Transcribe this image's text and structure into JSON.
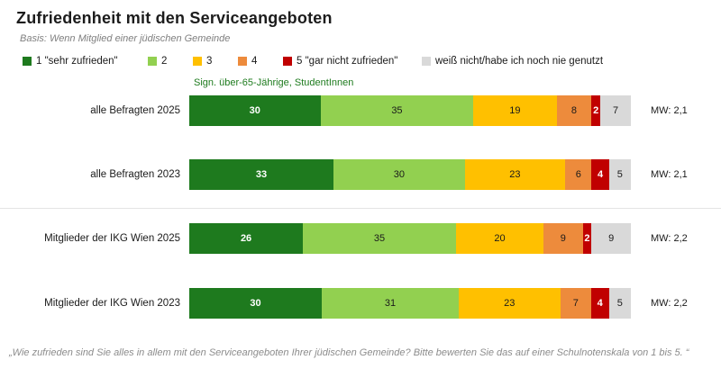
{
  "title": "Zufriedenheit mit den Serviceangeboten",
  "basis": "Basis: Wenn Mitglied einer jüdischen Gemeinde",
  "annotation": "Sign. über-65-Jährige, StudentInnen",
  "annotation_color": "#1e7b1e",
  "footnote": "„Wie zufrieden sind Sie alles in allem mit den Serviceangeboten Ihrer jüdischen Gemeinde? Bitte bewerten Sie das auf einer Schulnotenskala von 1 bis 5. “",
  "chart_data": {
    "type": "bar",
    "orientation": "horizontal-stacked",
    "value_unit": "percent",
    "xlim": [
      0,
      100
    ],
    "legend_position": "top",
    "categories": [
      "alle Befragten 2025",
      "alle Befragten 2023",
      "Mitglieder der IKG Wien 2025",
      "Mitglieder der IKG Wien 2023"
    ],
    "series": [
      {
        "name": "1 \"sehr zufrieden\"",
        "color": "#1E7A1E",
        "label_color": "#ffffff",
        "label_bold": true,
        "values": [
          30,
          33,
          26,
          30
        ]
      },
      {
        "name": "2",
        "color": "#92D050",
        "label_color": "#1a1a1a",
        "label_bold": false,
        "values": [
          35,
          30,
          35,
          31
        ]
      },
      {
        "name": "3",
        "color": "#FFC000",
        "label_color": "#1a1a1a",
        "label_bold": false,
        "values": [
          19,
          23,
          20,
          23
        ]
      },
      {
        "name": "4",
        "color": "#ED8B3C",
        "label_color": "#1a1a1a",
        "label_bold": false,
        "values": [
          8,
          6,
          9,
          7
        ]
      },
      {
        "name": "5 \"gar nicht zufrieden\"",
        "color": "#C00000",
        "label_color": "#ffffff",
        "label_bold": true,
        "values": [
          2,
          4,
          2,
          4
        ]
      },
      {
        "name": "weiß nicht/habe ich noch nie genutzt",
        "color": "#D9D9D9",
        "label_color": "#1a1a1a",
        "label_bold": false,
        "values": [
          7,
          5,
          9,
          5
        ]
      }
    ],
    "mean_labels": [
      "MW: 2,1",
      "MW: 2,1",
      "MW: 2,2",
      "MW: 2,2"
    ]
  }
}
